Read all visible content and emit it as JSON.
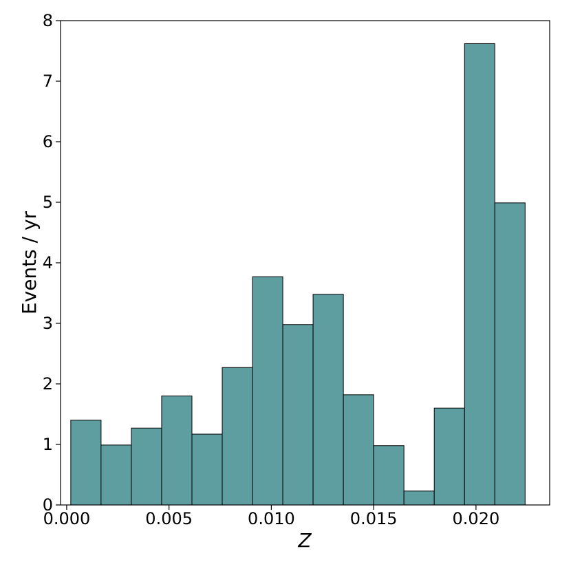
{
  "chart_data": {
    "type": "bar",
    "xlabel": "Z",
    "ylabel": "Events / yr",
    "bin_edges": [
      0.0002,
      0.00168,
      0.00316,
      0.00464,
      0.00612,
      0.0076,
      0.00908,
      0.01056,
      0.01204,
      0.01352,
      0.015,
      0.01648,
      0.01796,
      0.01944,
      0.02092,
      0.0224
    ],
    "values": [
      1.4,
      0.99,
      1.27,
      1.8,
      1.17,
      2.27,
      3.77,
      2.98,
      3.48,
      1.82,
      0.98,
      0.23,
      1.6,
      7.62,
      4.99
    ],
    "xlim": [
      -0.0003,
      0.0236
    ],
    "ylim": [
      0,
      8
    ],
    "xticks": [
      0.0,
      0.005,
      0.01,
      0.015,
      0.02
    ],
    "xtick_labels": [
      "0.000",
      "0.005",
      "0.010",
      "0.015",
      "0.020"
    ],
    "yticks": [
      0,
      1,
      2,
      3,
      4,
      5,
      6,
      7,
      8
    ],
    "ytick_labels": [
      "0",
      "1",
      "2",
      "3",
      "4",
      "5",
      "6",
      "7",
      "8"
    ],
    "grid": false,
    "bar_color": "#5f9ea0",
    "edge_color": "#000000"
  }
}
